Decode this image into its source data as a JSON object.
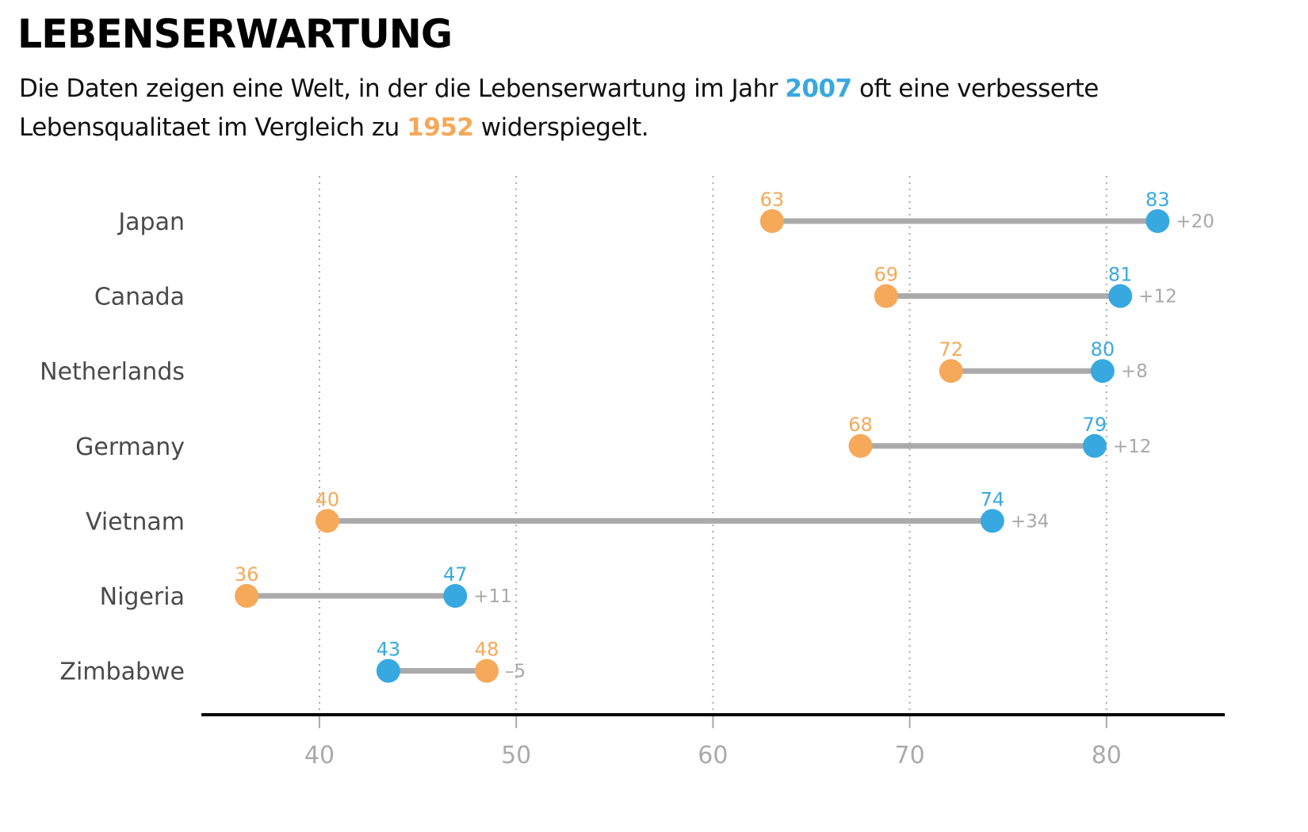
{
  "header": {
    "title": "LEBENSERWARTUNG",
    "subtitle": {
      "part1": "Die Daten zeigen eine Welt, in der die Lebenserwartung im Jahr ",
      "year_recent": "2007",
      "part2": " oft eine verbesserte Lebensqualitaet im Vergleich zu ",
      "year_past": "1952",
      "part3": " widerspiegelt."
    }
  },
  "colors": {
    "year_1952": "#f5a959",
    "year_2007": "#38a9e0",
    "connector": "#aaaaaa",
    "diff_text": "#a8a8a8",
    "axis": "#000000",
    "grid": "#aaaaaa"
  },
  "chart_data": {
    "type": "dumbbell",
    "title": "LEBENSERWARTUNG",
    "xlabel": "",
    "ylabel": "",
    "xlim": [
      34,
      86
    ],
    "x_ticks": [
      40,
      50,
      60,
      70,
      80
    ],
    "grid": "vertical-dotted",
    "series": [
      {
        "name": "1952",
        "color": "#f5a959"
      },
      {
        "name": "2007",
        "color": "#38a9e0"
      }
    ],
    "categories": [
      "Japan",
      "Canada",
      "Netherlands",
      "Germany",
      "Vietnam",
      "Nigeria",
      "Zimbabwe"
    ],
    "rows": [
      {
        "country": "Japan",
        "v1952": 63.0,
        "v2007": 82.6,
        "label1952": "63",
        "label2007": "83",
        "diff": "+20"
      },
      {
        "country": "Canada",
        "v1952": 68.8,
        "v2007": 80.7,
        "label1952": "69",
        "label2007": "81",
        "diff": "+12"
      },
      {
        "country": "Netherlands",
        "v1952": 72.1,
        "v2007": 79.8,
        "label1952": "72",
        "label2007": "80",
        "diff": "+8"
      },
      {
        "country": "Germany",
        "v1952": 67.5,
        "v2007": 79.4,
        "label1952": "68",
        "label2007": "79",
        "diff": "+12"
      },
      {
        "country": "Vietnam",
        "v1952": 40.4,
        "v2007": 74.2,
        "label1952": "40",
        "label2007": "74",
        "diff": "+34"
      },
      {
        "country": "Nigeria",
        "v1952": 36.3,
        "v2007": 46.9,
        "label1952": "36",
        "label2007": "47",
        "diff": "+11"
      },
      {
        "country": "Zimbabwe",
        "v1952": 48.5,
        "v2007": 43.5,
        "label1952": "48",
        "label2007": "43",
        "diff": "–5"
      }
    ]
  }
}
